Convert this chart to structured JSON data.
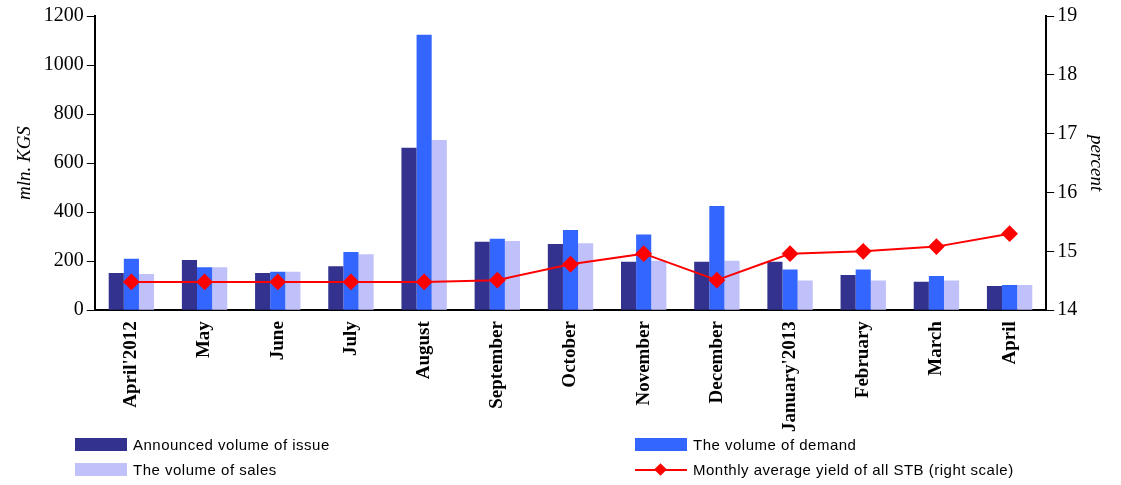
{
  "chart_data": {
    "type": "bar",
    "ylabel": "mln. KGS",
    "y2label": "percent",
    "categories": [
      "April'2012",
      "May",
      "June",
      "July",
      "August",
      "September",
      "October",
      "November",
      "December",
      "January'2013",
      "February",
      "March",
      "April"
    ],
    "series": [
      {
        "name": "Announced volume of issue",
        "color": "#33338f",
        "values": [
          152,
          205,
          152,
          179,
          663,
          279,
          270,
          197,
          197,
          197,
          143,
          116,
          99
        ]
      },
      {
        "name": "The volume of demand",
        "color": "#3366ff",
        "values": [
          210,
          175,
          157,
          237,
          1124,
          291,
          327,
          309,
          425,
          166,
          166,
          139,
          103
        ]
      },
      {
        "name": "The volume of sales",
        "color": "#c0c0fa",
        "values": [
          148,
          175,
          157,
          228,
          694,
          282,
          273,
          202,
          202,
          121,
          121,
          121,
          103
        ]
      },
      {
        "name": "Monthly average yield of all STB (right scale)",
        "type": "line",
        "axis": "y2",
        "color": "#ff0000",
        "marker": "diamond",
        "values": [
          14.48,
          14.48,
          14.48,
          14.48,
          14.48,
          14.51,
          14.78,
          14.96,
          14.51,
          14.96,
          15.0,
          15.08,
          15.3
        ]
      }
    ],
    "ylim": [
      0,
      1200
    ],
    "yticks": [
      0,
      200,
      400,
      600,
      800,
      1000,
      1200
    ],
    "y2lim": [
      14,
      19
    ],
    "y2ticks": [
      14,
      15,
      16,
      17,
      18,
      19
    ],
    "grid": false,
    "legend": "bottom"
  }
}
